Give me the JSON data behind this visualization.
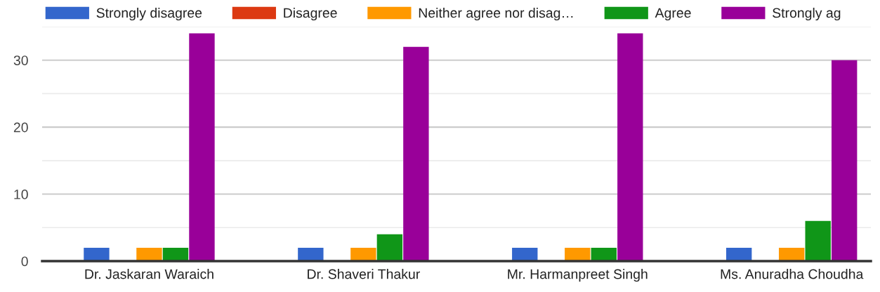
{
  "chart_data": {
    "type": "bar",
    "categories": [
      "Dr. Jaskaran Waraich",
      "Dr. Shaveri Thakur",
      "Mr. Harmanpreet Singh",
      "Ms. Anuradha Choudha"
    ],
    "series": [
      {
        "name": "Strongly disagree",
        "color": "#3366cc",
        "values": [
          2,
          2,
          2,
          2
        ]
      },
      {
        "name": "Disagree",
        "color": "#dc3912",
        "values": [
          0,
          0,
          0,
          0
        ]
      },
      {
        "name": "Neither agree nor disag…",
        "color": "#ff9900",
        "values": [
          2,
          2,
          2,
          2
        ]
      },
      {
        "name": "Agree",
        "color": "#109618",
        "values": [
          2,
          4,
          2,
          6
        ]
      },
      {
        "name": "Strongly ag",
        "color": "#990099",
        "values": [
          34,
          32,
          34,
          30
        ]
      }
    ],
    "ylim": [
      0,
      35
    ],
    "yticks": [
      0,
      {
        "value": 5,
        "label": null
      },
      10,
      {
        "value": 15,
        "label": null
      },
      20,
      {
        "value": 25,
        "label": null
      },
      30,
      {
        "value": 35,
        "label": null
      }
    ],
    "grid": "y",
    "legend": "top"
  }
}
